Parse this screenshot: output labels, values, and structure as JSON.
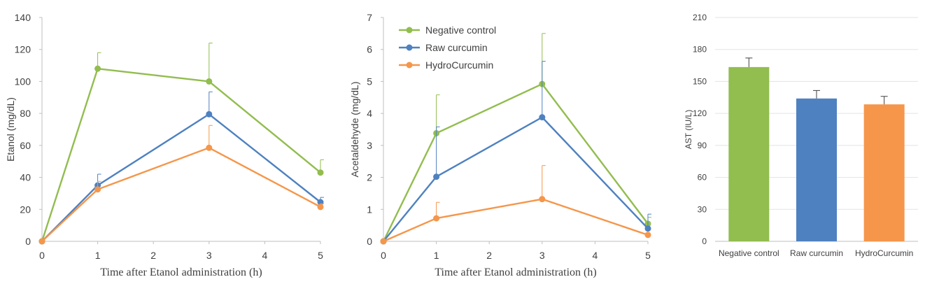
{
  "chart_data": [
    {
      "type": "line",
      "xlabel": "Time after Etanol administration (h)",
      "ylabel": "Etanol (mg/dL)",
      "x": [
        0,
        1,
        3,
        5
      ],
      "xticks": [
        0,
        1,
        2,
        3,
        4,
        5
      ],
      "xlim": [
        0,
        5
      ],
      "ylim": [
        0,
        140
      ],
      "yticks": [
        0,
        20,
        40,
        60,
        80,
        100,
        120,
        140
      ],
      "grid": false,
      "series": [
        {
          "name": "Negative control",
          "color": "#92bd4f",
          "values": [
            0,
            108,
            100,
            43
          ],
          "errors": [
            0,
            10,
            24,
            8
          ]
        },
        {
          "name": "Raw curcumin",
          "color": "#4e81c0",
          "values": [
            0,
            35,
            79.5,
            24.5
          ],
          "errors": [
            0,
            7,
            14,
            3
          ]
        },
        {
          "name": "HydroCurcumin",
          "color": "#f5964a",
          "values": [
            0,
            32.5,
            58.5,
            21.5
          ],
          "errors": [
            0,
            5,
            14,
            2
          ]
        }
      ]
    },
    {
      "type": "line",
      "xlabel": "Time after Etanol administration (h)",
      "ylabel": "Acetaldehyde (mg/dL)",
      "x": [
        0,
        1,
        3,
        5
      ],
      "xticks": [
        0,
        1,
        2,
        3,
        4,
        5
      ],
      "xlim": [
        0,
        5
      ],
      "ylim": [
        0,
        7
      ],
      "yticks": [
        0,
        1,
        2,
        3,
        4,
        5,
        6,
        7
      ],
      "grid": false,
      "legend": "top-left",
      "series": [
        {
          "name": "Negative control",
          "color": "#92bd4f",
          "values": [
            0,
            3.38,
            4.92,
            0.55
          ],
          "errors": [
            0,
            1.2,
            1.58,
            0.2
          ]
        },
        {
          "name": "Raw curcumin",
          "color": "#4e81c0",
          "values": [
            0,
            2.02,
            3.88,
            0.4
          ],
          "errors": [
            0,
            1.56,
            1.75,
            0.45
          ]
        },
        {
          "name": "HydroCurcumin",
          "color": "#f5964a",
          "values": [
            0,
            0.72,
            1.32,
            0.2
          ],
          "errors": [
            0,
            0.5,
            1.05,
            0
          ]
        }
      ]
    },
    {
      "type": "bar",
      "ylabel": "AST (IU/L)",
      "categories": [
        "Negative control",
        "Raw curcumin",
        "HydroCurcumin"
      ],
      "values": [
        163.5,
        134,
        128.5
      ],
      "errors": [
        8.5,
        7.5,
        7.5
      ],
      "colors": [
        "#92bd4f",
        "#4e81c0",
        "#f5964a"
      ],
      "ylim": [
        0,
        210
      ],
      "yticks": [
        0,
        30,
        60,
        90,
        120,
        150,
        180,
        210
      ],
      "grid": true
    }
  ]
}
